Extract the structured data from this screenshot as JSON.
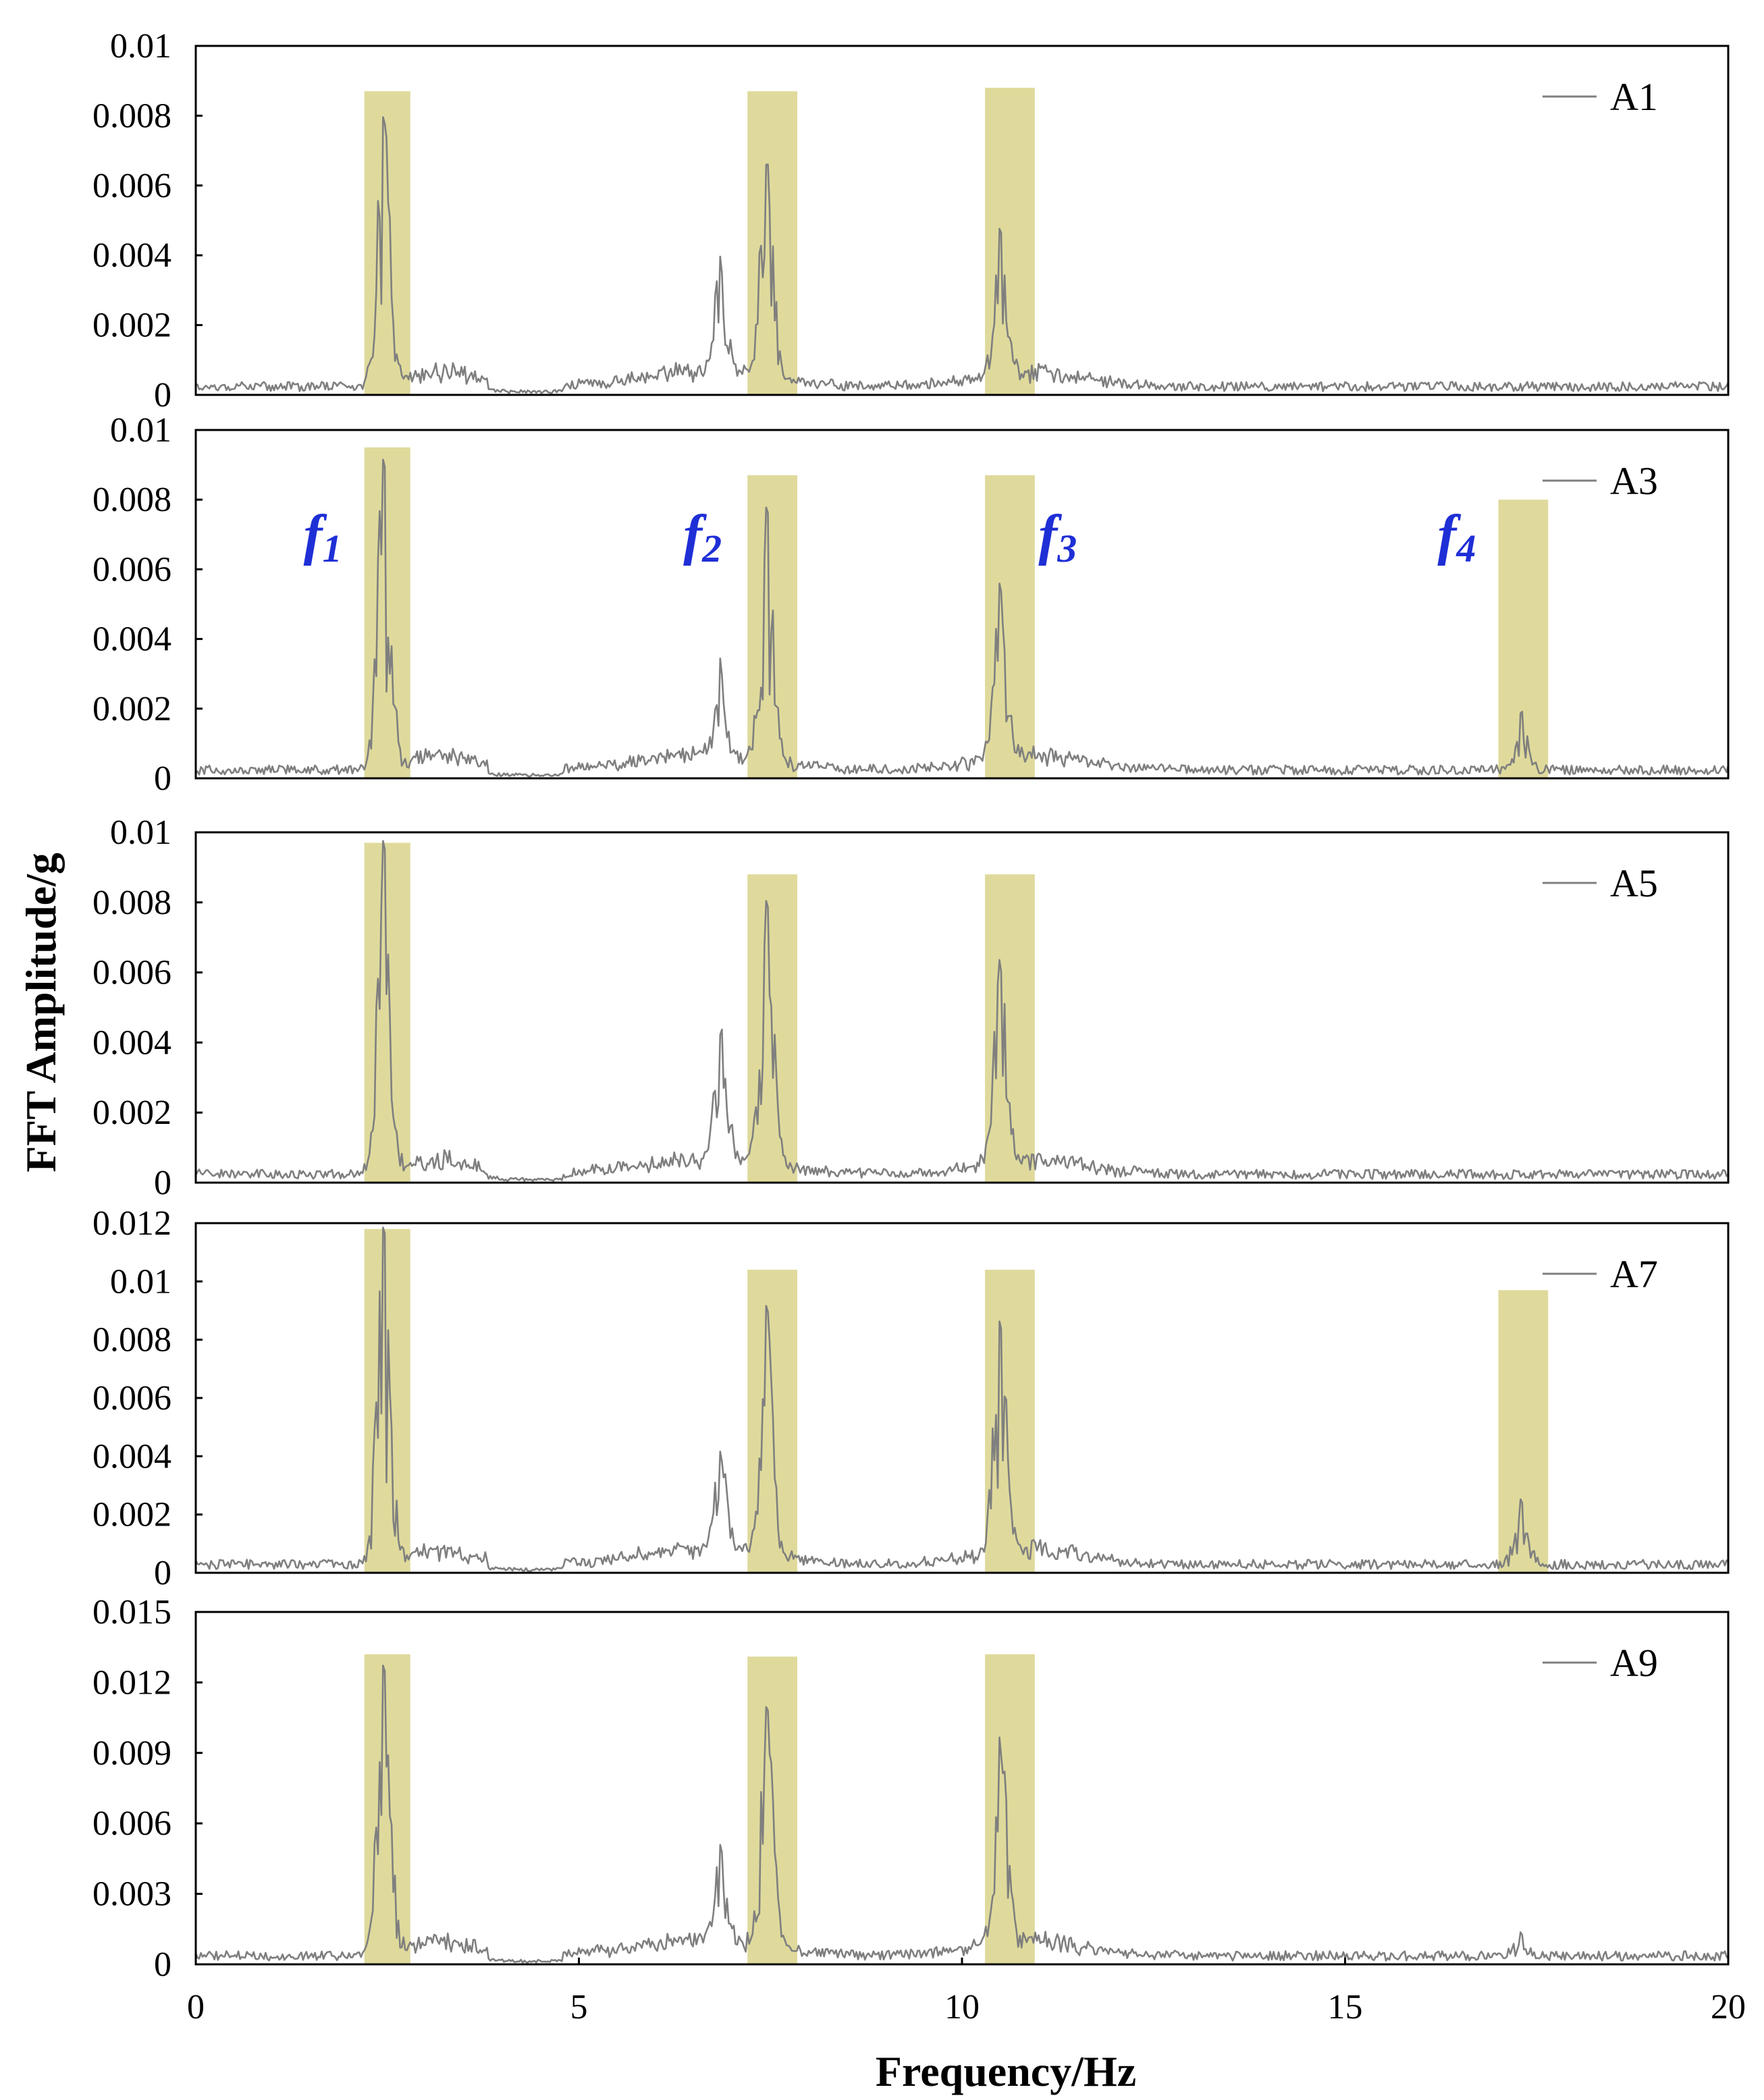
{
  "colors": {
    "signal": "#7f7f7f",
    "band": "#c9c25a",
    "band_signal": "#b7b23a",
    "frame": "#000000",
    "annotation": "#1f2fd6"
  },
  "chart_data": {
    "type": "line",
    "title": "",
    "xlabel": "Frequency/Hz",
    "ylabel": "FFT Amplitude/g",
    "xlim": [
      0,
      20
    ],
    "xticks": [
      "0",
      "5",
      "10",
      "15",
      "20"
    ],
    "annotations": [
      {
        "label": "f",
        "sub": "1",
        "frequency": 2.45
      },
      {
        "label": "f",
        "sub": "2",
        "frequency": 7.45
      },
      {
        "label": "f",
        "sub": "3",
        "frequency": 10.5
      },
      {
        "label": "f",
        "sub": "4",
        "frequency": 17.25
      }
    ],
    "panels": [
      {
        "legend": "A1",
        "ylim": [
          0,
          0.01
        ],
        "yticks": [
          "0.01",
          "0.008",
          "0.006",
          "0.004",
          "0.002",
          "0"
        ],
        "highlight_bands": [
          {
            "from": 2.2,
            "to": 2.8,
            "height": 0.0087
          },
          {
            "from": 7.2,
            "to": 7.85,
            "height": 0.0087
          },
          {
            "from": 10.3,
            "to": 10.95,
            "height": 0.0088
          }
        ],
        "peaks": [
          {
            "frequency": 2.45,
            "amplitude": 0.0076
          },
          {
            "frequency": 6.85,
            "amplitude": 0.003
          },
          {
            "frequency": 7.45,
            "amplitude": 0.0062
          },
          {
            "frequency": 10.5,
            "amplitude": 0.0043
          }
        ]
      },
      {
        "legend": "A3",
        "ylim": [
          0,
          0.01
        ],
        "yticks": [
          "0.01",
          "0.008",
          "0.006",
          "0.004",
          "0.002",
          "0"
        ],
        "highlight_bands": [
          {
            "from": 2.2,
            "to": 2.8,
            "height": 0.0095
          },
          {
            "from": 7.2,
            "to": 7.85,
            "height": 0.0087
          },
          {
            "from": 10.3,
            "to": 10.95,
            "height": 0.0087
          },
          {
            "from": 17.0,
            "to": 17.65,
            "height": 0.008
          }
        ],
        "peaks": [
          {
            "frequency": 2.45,
            "amplitude": 0.0088
          },
          {
            "frequency": 6.85,
            "amplitude": 0.0025
          },
          {
            "frequency": 7.45,
            "amplitude": 0.0071
          },
          {
            "frequency": 10.5,
            "amplitude": 0.005
          },
          {
            "frequency": 17.3,
            "amplitude": 0.0016
          }
        ]
      },
      {
        "legend": "A5",
        "ylim": [
          0,
          0.01
        ],
        "yticks": [
          "0.01",
          "0.008",
          "0.006",
          "0.004",
          "0.002",
          "0"
        ],
        "highlight_bands": [
          {
            "from": 2.2,
            "to": 2.8,
            "height": 0.0097
          },
          {
            "from": 7.2,
            "to": 7.85,
            "height": 0.0088
          },
          {
            "from": 10.3,
            "to": 10.95,
            "height": 0.0088
          }
        ],
        "peaks": [
          {
            "frequency": 2.45,
            "amplitude": 0.0094
          },
          {
            "frequency": 6.85,
            "amplitude": 0.0037
          },
          {
            "frequency": 7.45,
            "amplitude": 0.0076
          },
          {
            "frequency": 10.5,
            "amplitude": 0.0056
          }
        ]
      },
      {
        "legend": "A7",
        "ylim": [
          0,
          0.012
        ],
        "yticks": [
          "0.012",
          "0.01",
          "0.008",
          "0.006",
          "0.004",
          "0.002",
          "0"
        ],
        "highlight_bands": [
          {
            "from": 2.2,
            "to": 2.8,
            "height": 0.0118
          },
          {
            "from": 7.2,
            "to": 7.85,
            "height": 0.0104
          },
          {
            "from": 10.3,
            "to": 10.95,
            "height": 0.0104
          },
          {
            "from": 17.0,
            "to": 17.65,
            "height": 0.0097
          }
        ],
        "peaks": [
          {
            "frequency": 2.45,
            "amplitude": 0.0115
          },
          {
            "frequency": 6.85,
            "amplitude": 0.0032
          },
          {
            "frequency": 7.45,
            "amplitude": 0.0085
          },
          {
            "frequency": 10.5,
            "amplitude": 0.0078
          },
          {
            "frequency": 17.3,
            "amplitude": 0.0022
          }
        ]
      },
      {
        "legend": "A9",
        "ylim": [
          0,
          0.015
        ],
        "yticks": [
          "0.015",
          "0.012",
          "0.009",
          "0.006",
          "0.003",
          "0"
        ],
        "highlight_bands": [
          {
            "from": 2.2,
            "to": 2.8,
            "height": 0.0132
          },
          {
            "from": 7.2,
            "to": 7.85,
            "height": 0.0131
          },
          {
            "from": 10.3,
            "to": 10.95,
            "height": 0.0132
          }
        ],
        "peaks": [
          {
            "frequency": 2.45,
            "amplitude": 0.0124
          },
          {
            "frequency": 6.85,
            "amplitude": 0.0041
          },
          {
            "frequency": 7.45,
            "amplitude": 0.0102
          },
          {
            "frequency": 10.5,
            "amplitude": 0.0084
          },
          {
            "frequency": 17.3,
            "amplitude": 0.0009
          }
        ]
      }
    ]
  }
}
